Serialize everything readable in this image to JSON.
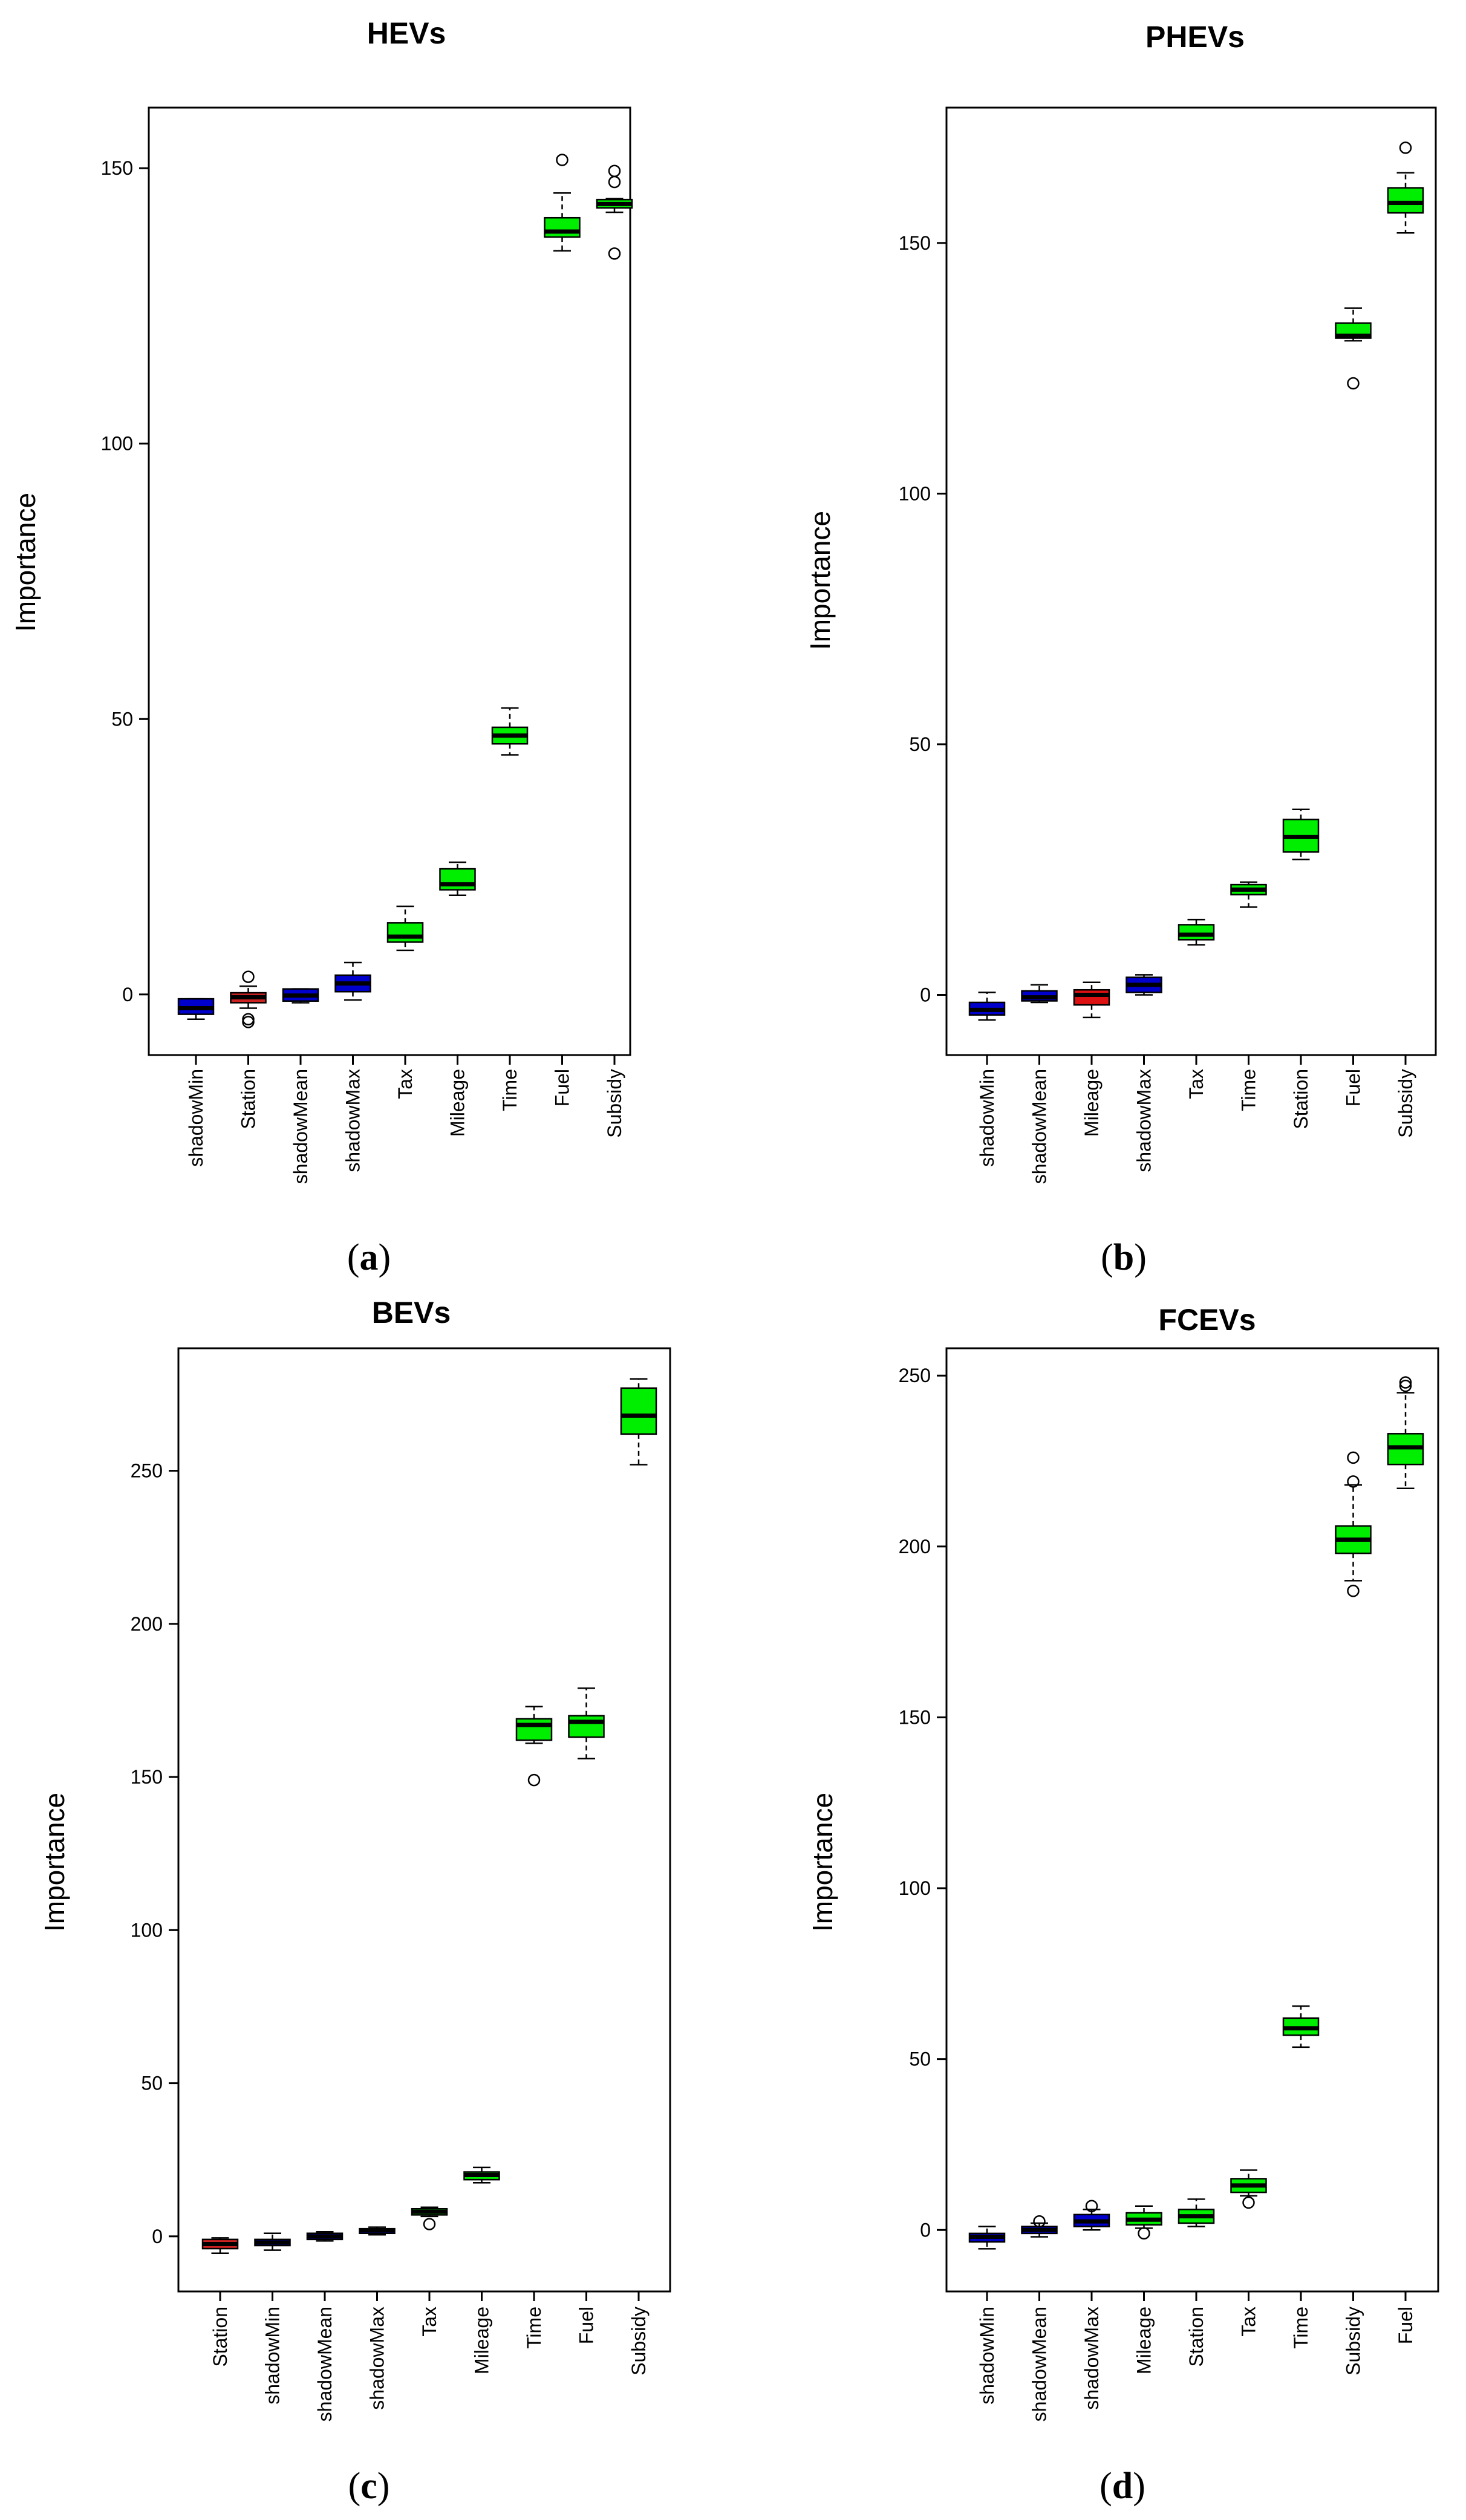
{
  "chart_data": [
    {
      "type": "box",
      "title": "HEVs",
      "ylabel": "Importance",
      "xlabel": "",
      "panel_label": "a",
      "ylim": [
        -11,
        161
      ],
      "yticks": [
        0,
        50,
        100,
        150
      ],
      "categories": [
        "shadowMin",
        "Station",
        "shadowMean",
        "shadowMax",
        "Tax",
        "Mileage",
        "Time",
        "Fuel",
        "Subsidy"
      ],
      "boxes": [
        {
          "name": "shadowMin",
          "color": "#0000cc",
          "whisker_low": -4.5,
          "q1": -3.6,
          "median": -2.5,
          "q3": -0.8,
          "whisker_high": -0.8,
          "outliers": []
        },
        {
          "name": "Station",
          "color": "#cc2222",
          "whisker_low": -2.5,
          "q1": -1.5,
          "median": -0.5,
          "q3": 0.3,
          "whisker_high": 1.5,
          "outliers": [
            3.2,
            -4.5,
            -5.0
          ]
        },
        {
          "name": "shadowMean",
          "color": "#0000cc",
          "whisker_low": -1.5,
          "q1": -1.2,
          "median": -0.2,
          "q3": 1.0,
          "whisker_high": 1.0,
          "outliers": []
        },
        {
          "name": "shadowMax",
          "color": "#0000cc",
          "whisker_low": -1.0,
          "q1": 0.5,
          "median": 2.0,
          "q3": 3.5,
          "whisker_high": 5.8,
          "outliers": []
        },
        {
          "name": "Tax",
          "color": "#00ee00",
          "whisker_low": 8.0,
          "q1": 9.5,
          "median": 10.5,
          "q3": 13.0,
          "whisker_high": 16.0,
          "outliers": []
        },
        {
          "name": "Mileage",
          "color": "#00ee00",
          "whisker_low": 18.0,
          "q1": 19.0,
          "median": 20.0,
          "q3": 22.8,
          "whisker_high": 24.0,
          "outliers": []
        },
        {
          "name": "Time",
          "color": "#00ee00",
          "whisker_low": 43.5,
          "q1": 45.5,
          "median": 47.0,
          "q3": 48.5,
          "whisker_high": 52.0,
          "outliers": []
        },
        {
          "name": "Fuel",
          "color": "#00ee00",
          "whisker_low": 135.0,
          "q1": 137.5,
          "median": 138.5,
          "q3": 141.0,
          "whisker_high": 145.5,
          "outliers": [
            151.5
          ]
        },
        {
          "name": "Subsidy",
          "color": "#00ee00",
          "whisker_low": 142.0,
          "q1": 142.8,
          "median": 143.5,
          "q3": 144.3,
          "whisker_high": 144.5,
          "outliers": [
            149.5,
            147.5,
            134.5
          ]
        }
      ]
    },
    {
      "type": "box",
      "title": "PHEVs",
      "ylabel": "Importance",
      "xlabel": "",
      "panel_label": "b",
      "ylim": [
        -12,
        177
      ],
      "yticks": [
        0,
        50,
        100,
        150
      ],
      "categories": [
        "shadowMin",
        "shadowMean",
        "Mileage",
        "shadowMax",
        "Tax",
        "Time",
        "Station",
        "Fuel",
        "Subsidy"
      ],
      "boxes": [
        {
          "name": "shadowMin",
          "color": "#0000cc",
          "whisker_low": -5.0,
          "q1": -4.0,
          "median": -3.0,
          "q3": -1.5,
          "whisker_high": 0.5,
          "outliers": []
        },
        {
          "name": "shadowMean",
          "color": "#0000cc",
          "whisker_low": -1.5,
          "q1": -1.2,
          "median": -0.5,
          "q3": 0.8,
          "whisker_high": 2.0,
          "outliers": []
        },
        {
          "name": "Mileage",
          "color": "#dd1111",
          "whisker_low": -4.5,
          "q1": -2.0,
          "median": 0.0,
          "q3": 1.0,
          "whisker_high": 2.5,
          "outliers": []
        },
        {
          "name": "shadowMax",
          "color": "#0000cc",
          "whisker_low": 0.0,
          "q1": 0.5,
          "median": 2.0,
          "q3": 3.5,
          "whisker_high": 4.0,
          "outliers": []
        },
        {
          "name": "Tax",
          "color": "#00ee00",
          "whisker_low": 10.0,
          "q1": 11.0,
          "median": 12.0,
          "q3": 14.0,
          "whisker_high": 15.0,
          "outliers": []
        },
        {
          "name": "Time",
          "color": "#00ee00",
          "whisker_low": 17.5,
          "q1": 20.0,
          "median": 21.0,
          "q3": 22.0,
          "whisker_high": 22.5,
          "outliers": []
        },
        {
          "name": "Station",
          "color": "#00ee00",
          "whisker_low": 27.0,
          "q1": 28.5,
          "median": 31.5,
          "q3": 35.0,
          "whisker_high": 37.0,
          "outliers": []
        },
        {
          "name": "Fuel",
          "color": "#00ee00",
          "whisker_low": 130.5,
          "q1": 131.0,
          "median": 131.5,
          "q3": 134.0,
          "whisker_high": 137.0,
          "outliers": [
            122.0
          ]
        },
        {
          "name": "Subsidy",
          "color": "#00ee00",
          "whisker_low": 152.0,
          "q1": 156.0,
          "median": 158.0,
          "q3": 161.0,
          "whisker_high": 164.0,
          "outliers": [
            169.0
          ]
        }
      ]
    },
    {
      "type": "box",
      "title": "BEVs",
      "ylabel": "Importance",
      "xlabel": "",
      "panel_label": "c",
      "ylim": [
        -18,
        290
      ],
      "yticks": [
        0,
        50,
        100,
        150,
        200,
        250
      ],
      "categories": [
        "Station",
        "shadowMin",
        "shadowMean",
        "shadowMax",
        "Tax",
        "Mileage",
        "Time",
        "Fuel",
        "Subsidy"
      ],
      "boxes": [
        {
          "name": "Station",
          "color": "#cc2222",
          "whisker_low": -5.5,
          "q1": -4.0,
          "median": -2.5,
          "q3": -1.0,
          "whisker_high": -0.5,
          "outliers": []
        },
        {
          "name": "shadowMin",
          "color": "#0000cc",
          "whisker_low": -4.5,
          "q1": -3.0,
          "median": -2.0,
          "q3": -1.0,
          "whisker_high": 1.0,
          "outliers": []
        },
        {
          "name": "shadowMean",
          "color": "#0000cc",
          "whisker_low": -1.5,
          "q1": -1.0,
          "median": 0.0,
          "q3": 1.0,
          "whisker_high": 1.5,
          "outliers": []
        },
        {
          "name": "shadowMax",
          "color": "#0000cc",
          "whisker_low": 0.5,
          "q1": 1.0,
          "median": 2.0,
          "q3": 2.5,
          "whisker_high": 3.0,
          "outliers": []
        },
        {
          "name": "Tax",
          "color": "#00ee00",
          "whisker_low": 6.5,
          "q1": 7.0,
          "median": 8.0,
          "q3": 9.0,
          "whisker_high": 9.5,
          "outliers": [
            4.0
          ]
        },
        {
          "name": "Mileage",
          "color": "#00ee00",
          "whisker_low": 17.5,
          "q1": 18.5,
          "median": 20.0,
          "q3": 21.0,
          "whisker_high": 22.5,
          "outliers": []
        },
        {
          "name": "Time",
          "color": "#00ee00",
          "whisker_low": 161.0,
          "q1": 162.0,
          "median": 167.0,
          "q3": 169.0,
          "whisker_high": 173.0,
          "outliers": [
            149.0
          ]
        },
        {
          "name": "Fuel",
          "color": "#00ee00",
          "whisker_low": 156.0,
          "q1": 163.0,
          "median": 168.0,
          "q3": 170.0,
          "whisker_high": 179.0,
          "outliers": []
        },
        {
          "name": "Subsidy",
          "color": "#00ee00",
          "whisker_low": 252.0,
          "q1": 262.0,
          "median": 268.0,
          "q3": 277.0,
          "whisker_high": 280.0,
          "outliers": []
        }
      ]
    },
    {
      "type": "box",
      "title": "FCEVs",
      "ylabel": "Importance",
      "xlabel": "",
      "panel_label": "d",
      "ylim": [
        -18,
        258
      ],
      "yticks": [
        0,
        50,
        100,
        150,
        200,
        250
      ],
      "categories": [
        "shadowMin",
        "shadowMean",
        "shadowMax",
        "Mileage",
        "Station",
        "Tax",
        "Time",
        "Subsidy",
        "Fuel"
      ],
      "boxes": [
        {
          "name": "shadowMin",
          "color": "#0000cc",
          "whisker_low": -5.5,
          "q1": -3.5,
          "median": -2.0,
          "q3": -1.0,
          "whisker_high": 1.0,
          "outliers": []
        },
        {
          "name": "shadowMean",
          "color": "#0000cc",
          "whisker_low": -2.0,
          "q1": -1.0,
          "median": 0.0,
          "q3": 1.0,
          "whisker_high": 2.0,
          "outliers": [
            2.5
          ]
        },
        {
          "name": "shadowMax",
          "color": "#0000cc",
          "whisker_low": 0.0,
          "q1": 1.0,
          "median": 2.5,
          "q3": 4.5,
          "whisker_high": 6.0,
          "outliers": [
            7.0
          ]
        },
        {
          "name": "Mileage",
          "color": "#00ee00",
          "whisker_low": 0.5,
          "q1": 1.5,
          "median": 3.0,
          "q3": 5.0,
          "whisker_high": 7.0,
          "outliers": [
            -1.0
          ]
        },
        {
          "name": "Station",
          "color": "#00ee00",
          "whisker_low": 1.0,
          "q1": 2.0,
          "median": 4.0,
          "q3": 6.0,
          "whisker_high": 9.0,
          "outliers": []
        },
        {
          "name": "Tax",
          "color": "#00ee00",
          "whisker_low": 10.0,
          "q1": 11.0,
          "median": 13.0,
          "q3": 15.0,
          "whisker_high": 17.5,
          "outliers": [
            8.0
          ]
        },
        {
          "name": "Time",
          "color": "#00ee00",
          "whisker_low": 53.5,
          "q1": 57.0,
          "median": 59.0,
          "q3": 62.0,
          "whisker_high": 65.5,
          "outliers": []
        },
        {
          "name": "Subsidy",
          "color": "#00ee00",
          "whisker_low": 190.0,
          "q1": 198.0,
          "median": 202.0,
          "q3": 206.0,
          "whisker_high": 218.0,
          "outliers": [
            187.0,
            219.0,
            226.0
          ]
        },
        {
          "name": "Fuel",
          "color": "#00ee00",
          "whisker_low": 217.0,
          "q1": 224.0,
          "median": 229.0,
          "q3": 233.0,
          "whisker_high": 245.0,
          "outliers": [
            247.0,
            248.0
          ]
        }
      ]
    }
  ]
}
